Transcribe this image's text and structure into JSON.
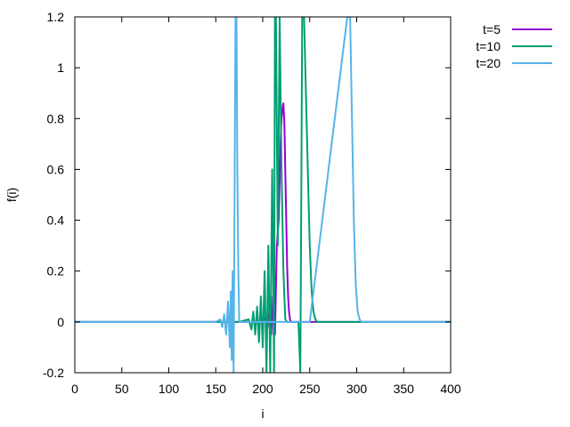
{
  "chart_data": {
    "type": "line",
    "title": "",
    "xlabel": "i",
    "ylabel": "f(i)",
    "xlim": [
      0,
      400
    ],
    "ylim": [
      -0.2,
      1.2
    ],
    "xticks": [
      "0",
      "50",
      "100",
      "150",
      "200",
      "250",
      "300",
      "350",
      "400"
    ],
    "yticks": [
      "-0.2",
      "0",
      "0.2",
      "0.4",
      "0.6",
      "0.8",
      "1",
      "1.2"
    ],
    "grid": false,
    "legend_position": "outside-top-right",
    "series": [
      {
        "name": "t=5",
        "color": "#9400d3",
        "x": [
          0,
          180,
          200,
          203,
          205,
          207,
          209,
          211,
          213,
          215,
          217,
          219,
          220,
          221,
          222,
          223,
          224,
          225,
          226,
          227,
          228,
          229,
          230,
          232,
          235,
          240,
          260,
          400
        ],
        "y": [
          0,
          0,
          0,
          0.02,
          -0.02,
          0.05,
          -0.05,
          0.1,
          -0.05,
          0.3,
          0.4,
          0.7,
          0.8,
          0.84,
          0.86,
          0.78,
          0.6,
          0.4,
          0.22,
          0.1,
          0.04,
          0.01,
          0,
          0,
          0,
          0,
          0,
          0
        ]
      },
      {
        "name": "t=10",
        "color": "#009e73",
        "x": [
          0,
          160,
          175,
          185,
          188,
          190,
          192,
          194,
          196,
          198,
          200,
          202,
          204,
          206,
          208,
          210,
          212,
          213,
          214,
          216,
          218,
          220,
          222,
          224,
          226,
          228,
          230,
          232,
          234,
          236,
          238,
          240,
          241,
          242,
          243,
          244,
          246,
          248,
          250,
          252,
          254,
          256,
          258,
          260,
          400
        ],
        "y": [
          0,
          0,
          0,
          0.01,
          -0.03,
          0.04,
          -0.05,
          0.06,
          -0.08,
          0.1,
          -0.1,
          0.2,
          -0.2,
          0.3,
          -0.2,
          0.6,
          -0.2,
          1.2,
          1.2,
          0.3,
          1.2,
          0.6,
          0.2,
          0.01,
          0,
          0,
          0,
          0,
          0,
          0,
          0,
          -0.2,
          0.5,
          1.2,
          1.2,
          1.2,
          0.9,
          0.6,
          0.3,
          0.12,
          0.04,
          0.01,
          0,
          0,
          0
        ]
      },
      {
        "name": "t=20",
        "color": "#56b4e9",
        "x": [
          0,
          150,
          155,
          157,
          159,
          161,
          163,
          165,
          166,
          167,
          168,
          169,
          170,
          171,
          172,
          173,
          174,
          175,
          180,
          200,
          250,
          290,
          293,
          295,
          297,
          299,
          301,
          303,
          305,
          310,
          400
        ],
        "y": [
          0,
          0,
          0.01,
          -0.02,
          0.03,
          -0.05,
          0.08,
          -0.1,
          0.12,
          -0.15,
          0.2,
          -0.2,
          0.5,
          1.2,
          1.2,
          0.6,
          0.2,
          0,
          0,
          0,
          0,
          1.2,
          1.2,
          0.8,
          0.4,
          0.15,
          0.04,
          0.01,
          0,
          0,
          0
        ]
      }
    ]
  }
}
